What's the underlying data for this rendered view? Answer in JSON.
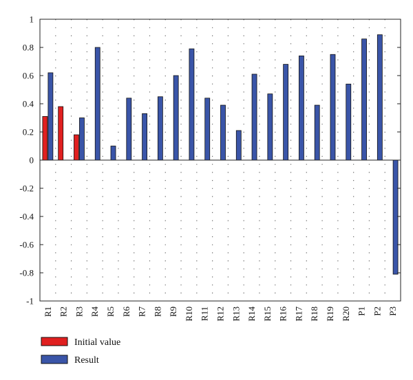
{
  "chart_data": {
    "type": "bar",
    "categories": [
      "R1",
      "R2",
      "R3",
      "R4",
      "R5",
      "R6",
      "R7",
      "R8",
      "R9",
      "R10",
      "R11",
      "R12",
      "R13",
      "R14",
      "R15",
      "R16",
      "R17",
      "R18",
      "R19",
      "R20",
      "P1",
      "P2",
      "P3"
    ],
    "series": [
      {
        "name": "Initial value",
        "color": "#e02020",
        "values": [
          0.31,
          0.38,
          0.18,
          null,
          null,
          null,
          null,
          null,
          null,
          null,
          null,
          null,
          null,
          null,
          null,
          null,
          null,
          null,
          null,
          null,
          null,
          null,
          null
        ]
      },
      {
        "name": "Result",
        "color": "#3a55a8",
        "values": [
          0.62,
          null,
          0.3,
          0.8,
          0.1,
          0.44,
          0.33,
          0.45,
          0.6,
          0.79,
          0.44,
          0.39,
          0.21,
          0.61,
          0.47,
          0.68,
          0.74,
          0.39,
          0.75,
          0.54,
          0.86,
          0.89,
          -0.81
        ]
      }
    ],
    "yticks": [
      "1",
      "0.8",
      "0.6",
      "0.4",
      "0.2",
      "0",
      "-0.2",
      "-0.4",
      "-0.6",
      "-0.8",
      "-1"
    ],
    "ylim": [
      -1,
      1
    ],
    "grid": "dotted-vertical",
    "legend": "bottom-left",
    "title": "",
    "xlabel": "",
    "ylabel": ""
  }
}
